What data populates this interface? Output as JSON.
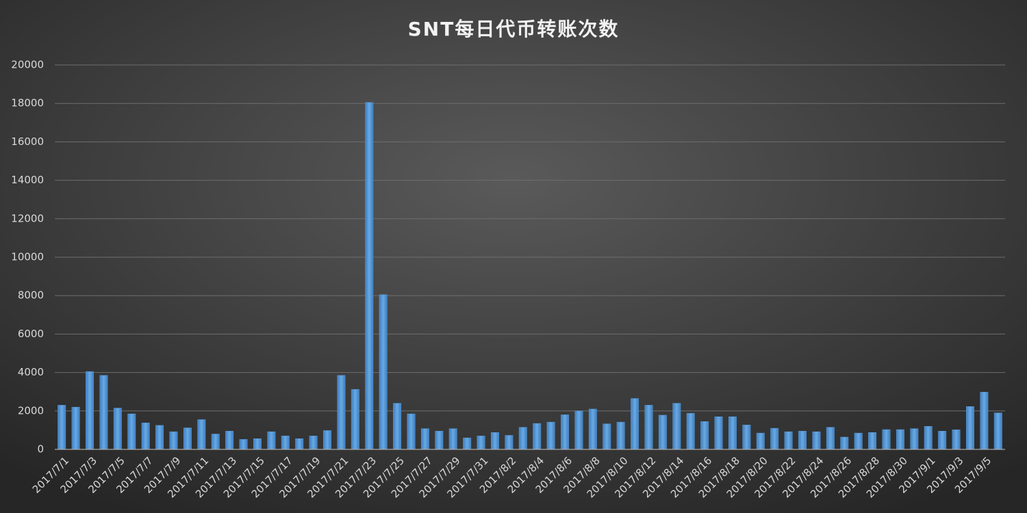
{
  "chart_data": {
    "type": "bar",
    "title": "SNT每日代币转账次数",
    "categories": [
      "2017/7/1",
      null,
      "2017/7/3",
      null,
      "2017/7/5",
      null,
      "2017/7/7",
      null,
      "2017/7/9",
      null,
      "2017/7/11",
      null,
      "2017/7/13",
      null,
      "2017/7/15",
      null,
      "2017/7/17",
      null,
      "2017/7/19",
      null,
      "2017/7/21",
      null,
      "2017/7/23",
      null,
      "2017/7/25",
      null,
      "2017/7/27",
      null,
      "2017/7/29",
      null,
      "2017/7/31",
      null,
      "2017/8/2",
      null,
      "2017/8/4",
      null,
      "2017/8/6",
      null,
      "2017/8/8",
      null,
      "2017/8/10",
      null,
      "2017/8/12",
      null,
      "2017/8/14",
      null,
      "2017/8/16",
      null,
      "2017/8/18",
      null,
      "2017/8/20",
      null,
      "2017/8/22",
      null,
      "2017/8/24",
      null,
      "2017/8/26",
      null,
      "2017/8/28",
      null,
      "2017/8/30",
      null,
      "2017/9/1",
      null,
      "2017/9/3",
      null,
      "2017/9/5",
      null
    ],
    "values": [
      2300,
      2200,
      4050,
      3850,
      2150,
      1850,
      1380,
      1250,
      920,
      1120,
      1550,
      800,
      950,
      520,
      560,
      920,
      700,
      560,
      700,
      980,
      3850,
      3120,
      18050,
      8050,
      2400,
      1850,
      1080,
      950,
      1080,
      600,
      700,
      880,
      730,
      1150,
      1350,
      1420,
      1800,
      2000,
      2100,
      1330,
      1420,
      2650,
      2300,
      1780,
      2400,
      1880,
      1450,
      1700,
      1700,
      1270,
      850,
      1100,
      920,
      950,
      920,
      1150,
      640,
      850,
      880,
      1030,
      1030,
      1080,
      1200,
      950,
      1020,
      2230,
      2980,
      1900
    ],
    "color": "#5b9bd5",
    "ylim": [
      0,
      20000
    ],
    "yticks": [
      0,
      2000,
      4000,
      6000,
      8000,
      10000,
      12000,
      14000,
      16000,
      18000,
      20000
    ],
    "grid": true
  }
}
